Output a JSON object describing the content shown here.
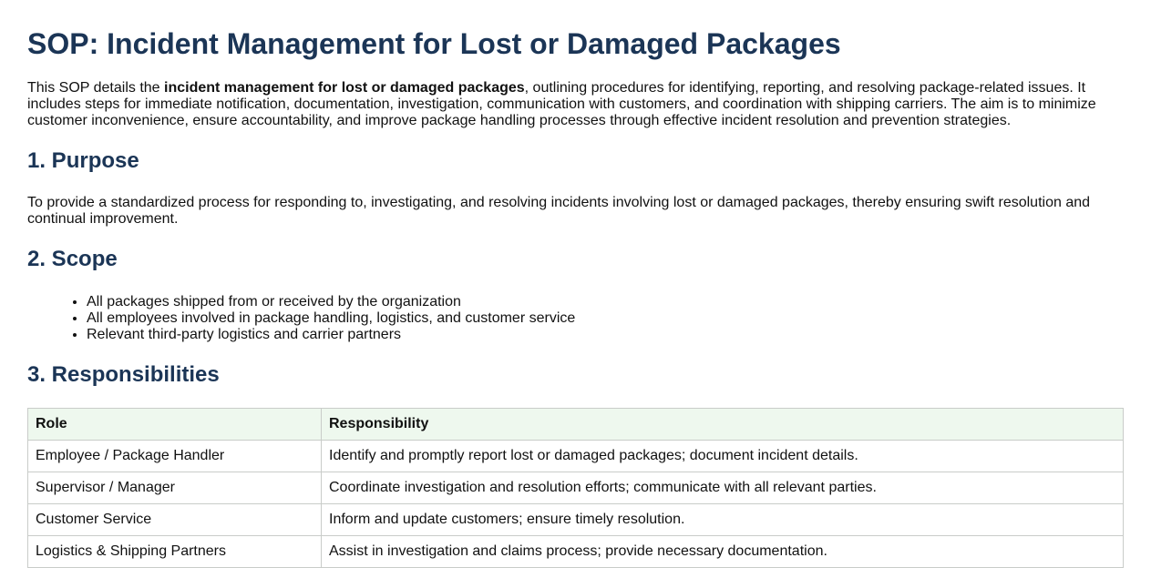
{
  "title": "SOP: Incident Management for Lost or Damaged Packages",
  "intro": {
    "before": "This SOP details the ",
    "bold": "incident management for lost or damaged packages",
    "after": ", outlining procedures for identifying, reporting, and resolving package-related issues. It includes steps for immediate notification, documentation, investigation, communication with customers, and coordination with shipping carriers. The aim is to minimize customer inconvenience, ensure accountability, and improve package handling processes through effective incident resolution and prevention strategies."
  },
  "purpose": {
    "heading": "1. Purpose",
    "text": "To provide a standardized process for responding to, investigating, and resolving incidents involving lost or damaged packages, thereby ensuring swift resolution and continual improvement."
  },
  "scope": {
    "heading": "2. Scope",
    "items": [
      "All packages shipped from or received by the organization",
      "All employees involved in package handling, logistics, and customer service",
      "Relevant third-party logistics and carrier partners"
    ]
  },
  "responsibilities": {
    "heading": "3. Responsibilities",
    "columns": [
      "Role",
      "Responsibility"
    ],
    "rows": [
      [
        "Employee / Package Handler",
        "Identify and promptly report lost or damaged packages; document incident details."
      ],
      [
        "Supervisor / Manager",
        "Coordinate investigation and resolution efforts; communicate with all relevant parties."
      ],
      [
        "Customer Service",
        "Inform and update customers; ensure timely resolution."
      ],
      [
        "Logistics & Shipping Partners",
        "Assist in investigation and claims process; provide necessary documentation."
      ]
    ]
  }
}
